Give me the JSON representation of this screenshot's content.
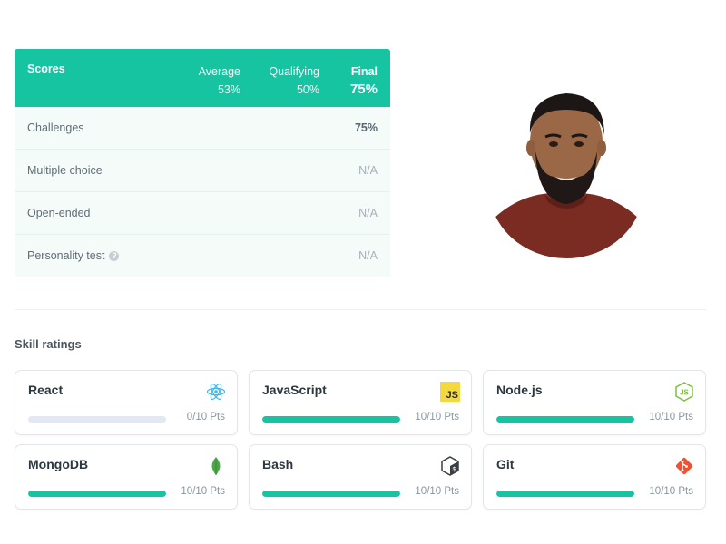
{
  "scores": {
    "header": {
      "label": "Scores",
      "average": {
        "name": "Average",
        "value": "53%"
      },
      "qualifying": {
        "name": "Qualifying",
        "value": "50%"
      },
      "final": {
        "name": "Final",
        "value": "75%"
      }
    },
    "rows": [
      {
        "label": "Challenges",
        "value": "75%"
      },
      {
        "label": "Multiple choice",
        "value": "N/A"
      },
      {
        "label": "Open-ended",
        "value": "N/A"
      },
      {
        "label": "Personality test",
        "value": "N/A"
      }
    ]
  },
  "skills": {
    "title": "Skill ratings",
    "items": [
      {
        "name": "React",
        "points": "0/10 Pts",
        "fraction": 0.0,
        "icon": "react-icon"
      },
      {
        "name": "JavaScript",
        "points": "10/10 Pts",
        "fraction": 1.0,
        "icon": "javascript-icon",
        "icon_text": "JS"
      },
      {
        "name": "Node.js",
        "points": "10/10 Pts",
        "fraction": 1.0,
        "icon": "nodejs-icon",
        "icon_text": "JS"
      },
      {
        "name": "MongoDB",
        "points": "10/10 Pts",
        "fraction": 1.0,
        "icon": "mongodb-leaf-icon"
      },
      {
        "name": "Bash",
        "points": "10/10 Pts",
        "fraction": 1.0,
        "icon": "bash-terminal-icon",
        "icon_text": "$"
      },
      {
        "name": "Git",
        "points": "10/10 Pts",
        "fraction": 1.0,
        "icon": "git-icon"
      }
    ]
  },
  "colors": {
    "accent": "#16c4a2",
    "bar_empty": "#e2e8f4"
  },
  "icons": {
    "help": "help-circle-icon",
    "help_glyph": "?"
  }
}
